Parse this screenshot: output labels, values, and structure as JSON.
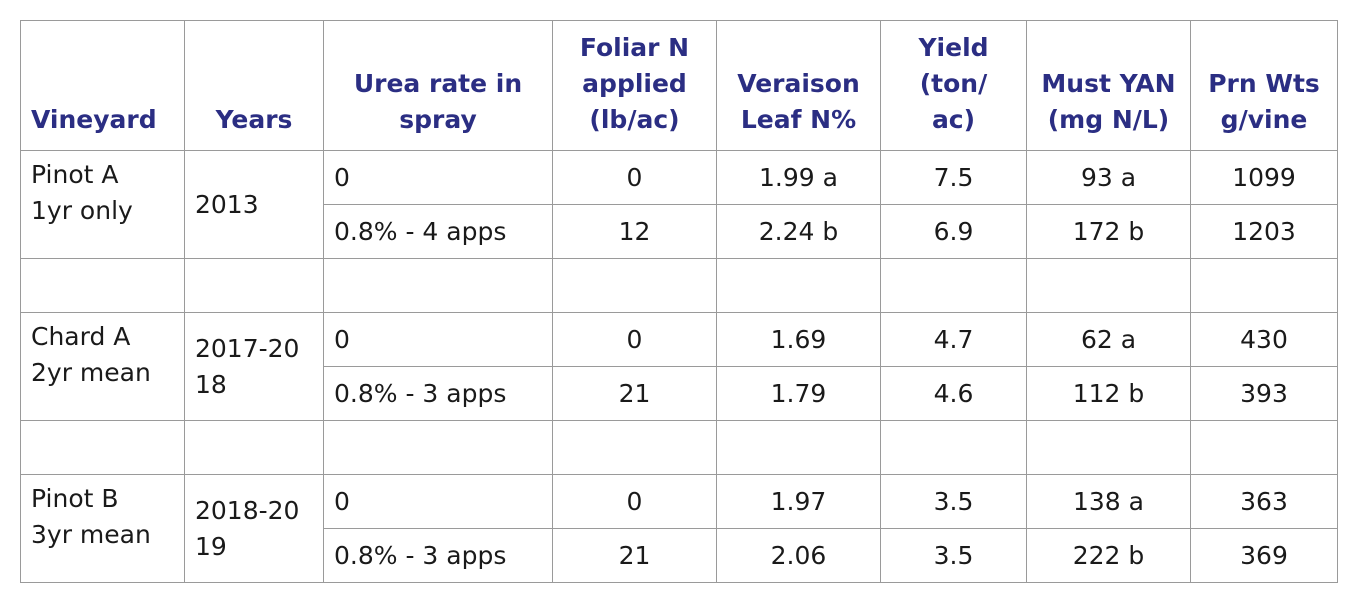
{
  "headers": {
    "vineyard": "Vineyard",
    "years": "Years",
    "urea_1": "Urea rate in",
    "urea_2": "spray",
    "foliar_1": "Foliar N",
    "foliar_2": "applied",
    "foliar_3": "(lb/ac)",
    "leaf_1": "Veraison",
    "leaf_2": "Leaf N%",
    "yield_1": "Yield",
    "yield_2": "(ton/",
    "yield_3": "ac)",
    "yan_1": "Must YAN",
    "yan_2": "(mg N/L)",
    "prn_1": "Prn Wts",
    "prn_2": "g/vine"
  },
  "groups": [
    {
      "vineyard_1": "Pinot A",
      "vineyard_2": "1yr only",
      "years_1": "2013",
      "years_2": "",
      "rows": [
        {
          "rate": "0",
          "foliar": "0",
          "leaf": "1.99 a",
          "yield": "7.5",
          "yan": "93 a",
          "prn": "1099"
        },
        {
          "rate": "0.8% - 4 apps",
          "foliar": "12",
          "leaf": "2.24 b",
          "yield": "6.9",
          "yan": "172 b",
          "prn": "1203"
        }
      ]
    },
    {
      "vineyard_1": "Chard A",
      "vineyard_2": "2yr mean",
      "years_1": "2017-20",
      "years_2": "18",
      "rows": [
        {
          "rate": "0",
          "foliar": "0",
          "leaf": "1.69",
          "yield": "4.7",
          "yan": "62 a",
          "prn": "430"
        },
        {
          "rate": "0.8% - 3 apps",
          "foliar": "21",
          "leaf": "1.79",
          "yield": "4.6",
          "yan": "112 b",
          "prn": "393"
        }
      ]
    },
    {
      "vineyard_1": "Pinot B",
      "vineyard_2": "3yr mean",
      "years_1": "2018-20",
      "years_2": "19",
      "rows": [
        {
          "rate": "0",
          "foliar": "0",
          "leaf": "1.97",
          "yield": "3.5",
          "yan": "138 a",
          "prn": "363"
        },
        {
          "rate": "0.8% - 3 apps",
          "foliar": "21",
          "leaf": "2.06",
          "yield": "3.5",
          "yan": "222 b",
          "prn": "369"
        }
      ]
    }
  ]
}
